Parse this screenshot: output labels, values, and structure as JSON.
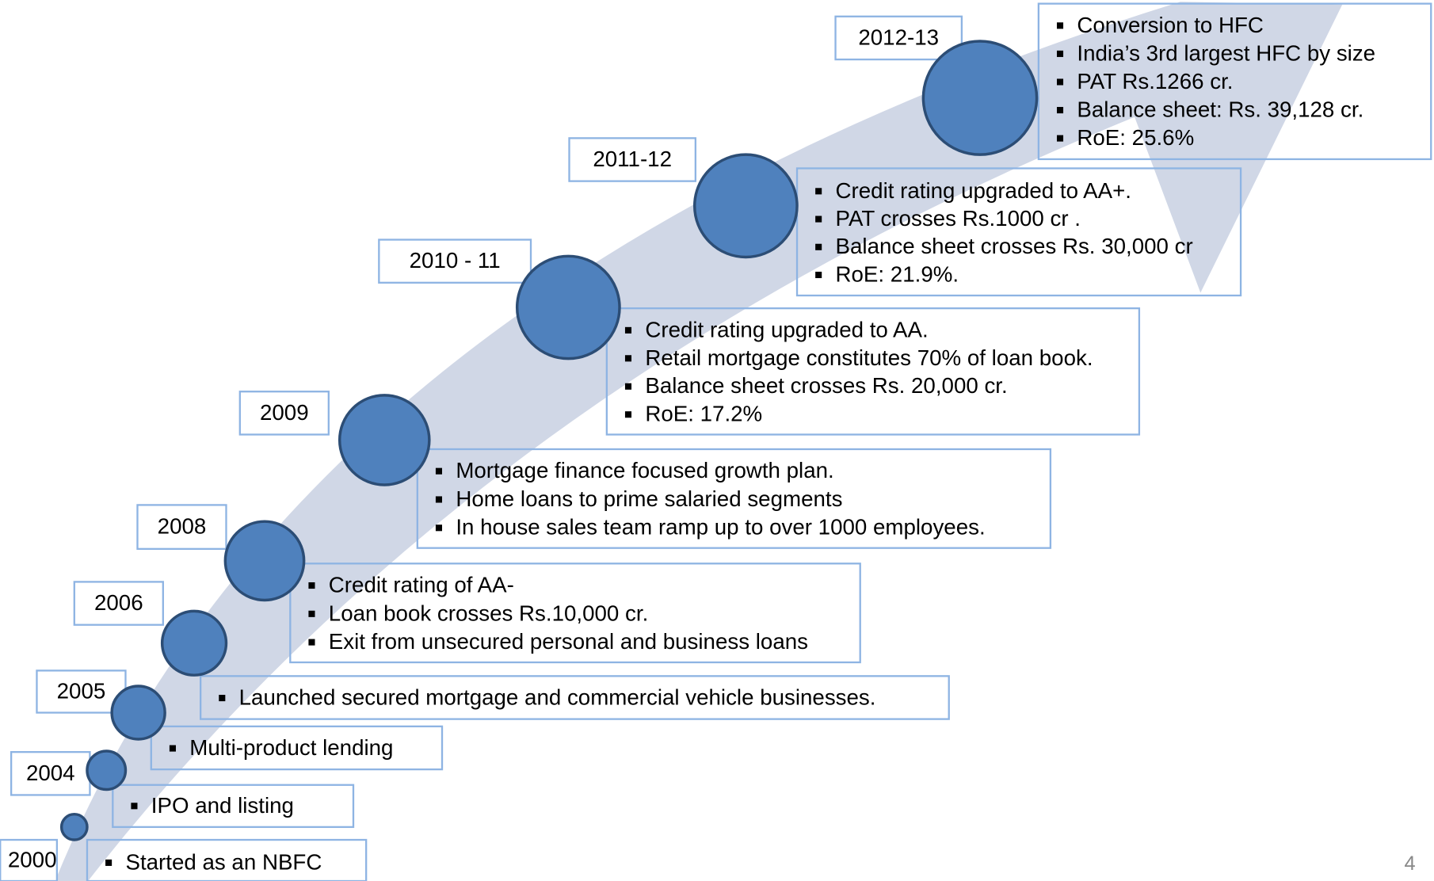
{
  "milestones": [
    {
      "year": "2000",
      "points": [
        "Started as an NBFC"
      ]
    },
    {
      "year": "2004",
      "points": [
        "IPO and listing"
      ]
    },
    {
      "year": "2005",
      "points": [
        "Multi-product lending"
      ]
    },
    {
      "year": "2006",
      "points": [
        "Launched secured mortgage and commercial vehicle businesses."
      ]
    },
    {
      "year": "2008",
      "points": [
        "Credit rating of AA-",
        "Loan book crosses Rs.10,000 cr.",
        "Exit from unsecured personal and business loans"
      ]
    },
    {
      "year": "2009",
      "points": [
        "Mortgage finance focused growth plan.",
        "Home loans to prime salaried segments",
        "In house sales team ramp up to over 1000 employees."
      ]
    },
    {
      "year": "2010 - 11",
      "points": [
        "Credit rating upgraded to AA.",
        "Retail mortgage constitutes 70% of loan book.",
        "Balance sheet crosses Rs. 20,000 cr.",
        "RoE: 17.2%"
      ]
    },
    {
      "year": "2011-12",
      "points": [
        "Credit rating upgraded to AA+.",
        "PAT crosses Rs.1000 cr .",
        "Balance sheet crosses Rs. 30,000 cr",
        "RoE: 21.9%."
      ]
    },
    {
      "year": "2012-13",
      "points": [
        "Conversion to HFC",
        "India’s 3rd largest HFC by size",
        "PAT Rs.1266 cr.",
        "Balance sheet: Rs. 39,128 cr.",
        "RoE: 25.6%"
      ]
    }
  ],
  "page_number": "4"
}
